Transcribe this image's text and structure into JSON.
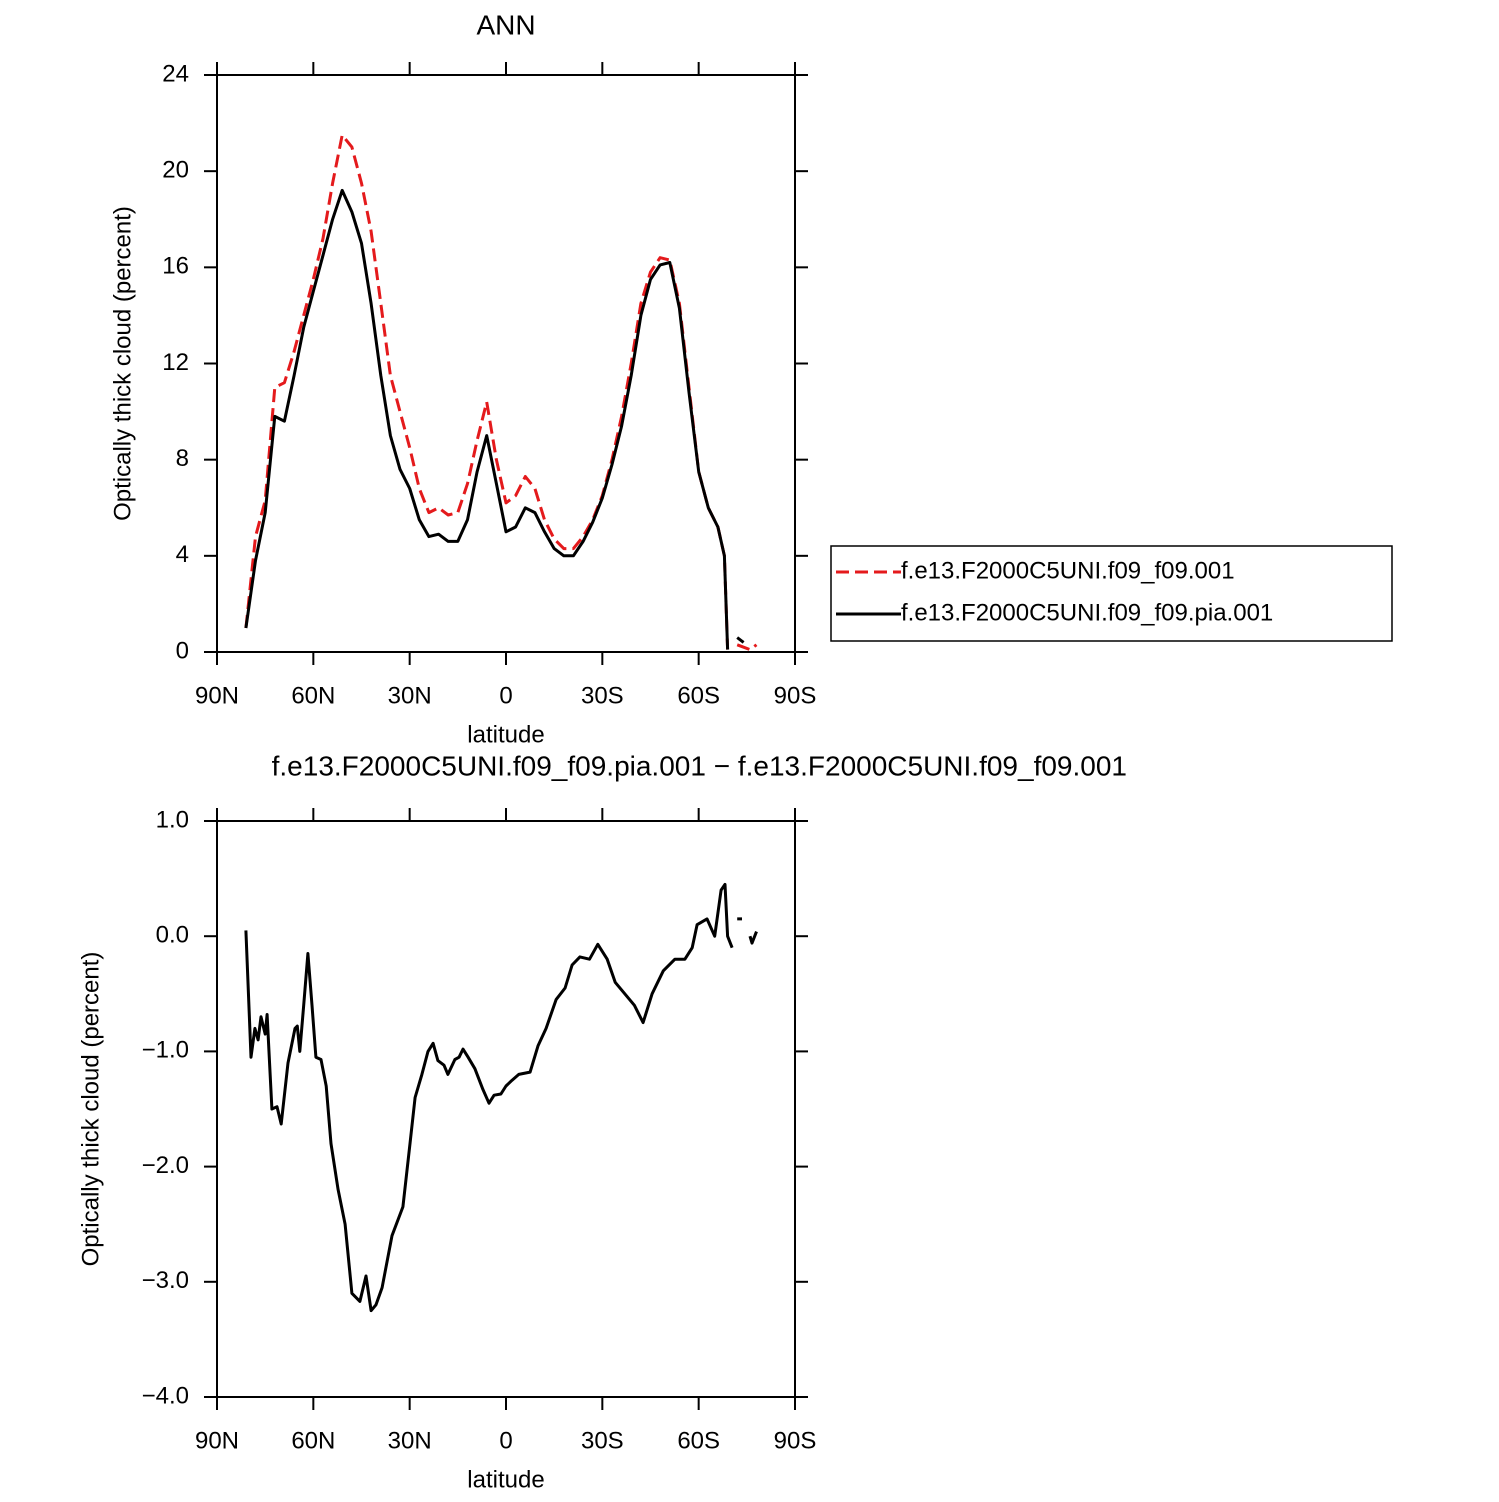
{
  "chart_data": [
    {
      "type": "line",
      "title": "ANN",
      "xlabel": "latitude",
      "ylabel": "Optically thick cloud (percent)",
      "x": [
        81,
        78,
        75,
        72,
        69,
        66,
        63,
        60,
        57,
        54,
        51,
        48,
        45,
        42,
        39,
        36,
        33,
        30,
        27,
        24,
        21,
        18,
        15,
        12,
        9,
        6,
        3,
        0,
        -3,
        -6,
        -9,
        -12,
        -15,
        -18,
        -21,
        -24,
        -27,
        -30,
        -33,
        -36,
        -39,
        -42,
        -45,
        -48,
        -51,
        -54,
        -57,
        -60,
        -63,
        -66,
        -68,
        -69,
        -70,
        -72,
        -74,
        -76,
        -78
      ],
      "series": [
        {
          "name": "f.e13.F2000C5UNI.f09_f09.001",
          "color": "#e41a1c",
          "linestyle": "dashed",
          "values": [
            1,
            4.8,
            6.3,
            11,
            11.2,
            12.5,
            14,
            15.5,
            17.2,
            19.5,
            21.5,
            21,
            19.5,
            17.5,
            14.5,
            11.5,
            10,
            8.5,
            6.8,
            5.8,
            6,
            5.7,
            5.8,
            7,
            8.8,
            10.4,
            8,
            6.2,
            6.5,
            7.3,
            6.8,
            5.5,
            4.7,
            4.3,
            4.3,
            4.8,
            5.5,
            6.5,
            8,
            9.8,
            12,
            14.5,
            15.8,
            16.4,
            16.3,
            14.5,
            11,
            7.5,
            6,
            5.2,
            4,
            0.1,
            null,
            0.3,
            0.2,
            0.1,
            0.3
          ]
        },
        {
          "name": "f.e13.F2000C5UNI.f09_f09.pia.001",
          "color": "#000000",
          "linestyle": "solid",
          "values": [
            1,
            3.8,
            5.8,
            9.8,
            9.6,
            11.5,
            13.5,
            15,
            16.5,
            18,
            19.2,
            18.3,
            17,
            14.5,
            11.5,
            9,
            7.6,
            6.8,
            5.5,
            4.8,
            4.9,
            4.6,
            4.6,
            5.5,
            7.5,
            9,
            7,
            5,
            5.2,
            6,
            5.8,
            5,
            4.3,
            4,
            4,
            4.6,
            5.4,
            6.4,
            7.8,
            9.4,
            11.5,
            14,
            15.5,
            16.1,
            16.2,
            14.3,
            10.8,
            7.5,
            6,
            5.2,
            4,
            0.1,
            null,
            0.6,
            0.4,
            null,
            null
          ]
        }
      ],
      "xlim": [
        90,
        -90
      ],
      "xticks": [
        {
          "value": 90,
          "label": "90N"
        },
        {
          "value": 60,
          "label": "60N"
        },
        {
          "value": 30,
          "label": "30N"
        },
        0,
        {
          "value": -30,
          "label": "30S"
        },
        {
          "value": -60,
          "label": "60S"
        },
        {
          "value": -90,
          "label": "90S"
        }
      ],
      "ylim": [
        0,
        24
      ],
      "yticks": [
        0,
        4,
        8,
        12,
        16,
        20,
        24
      ],
      "legend": "right"
    },
    {
      "type": "line",
      "title": "f.e13.F2000C5UNI.f09_f09.pia.001 − f.e13.F2000C5UNI.f09_f09.001",
      "xlabel": "latitude",
      "ylabel": "Optically thick cloud (percent)",
      "x": [
        81,
        79.4,
        78.2,
        77.2,
        76.3,
        75,
        74.4,
        72.9,
        71.3,
        70,
        67.9,
        65.7,
        65,
        64.2,
        63,
        61.7,
        60.4,
        59.2,
        57.6,
        56,
        54.5,
        52.3,
        50.1,
        48,
        45.5,
        43.6,
        42,
        40.5,
        38.6,
        35.5,
        32.1,
        29.9,
        28.3,
        26.2,
        24.3,
        22.7,
        21.2,
        19.3,
        18.1,
        15.9,
        14.6,
        13.4,
        11.8,
        9.7,
        7.2,
        5.3,
        3.7,
        1.6,
        0,
        -1.9,
        -4,
        -7.5,
        -10,
        -12.5,
        -15.6,
        -18.4,
        -20.6,
        -23,
        -26,
        -28.6,
        -31.5,
        -34,
        -37,
        -40,
        -42.7,
        -45.5,
        -49,
        -52.6,
        -55.7,
        -58,
        -59.5,
        -62.6,
        -65,
        -67,
        -68.2,
        -69,
        -70.4,
        -71.5,
        -72,
        -73.5,
        -75,
        -76,
        -76.6,
        -78
      ],
      "values": [
        0.05,
        -1.05,
        -0.8,
        -0.9,
        -0.7,
        -0.85,
        -0.68,
        -1.5,
        -1.48,
        -1.63,
        -1.1,
        -0.8,
        -0.78,
        -1.0,
        -0.6,
        -0.15,
        -0.6,
        -1.05,
        -1.07,
        -1.3,
        -1.8,
        -2.2,
        -2.5,
        -3.1,
        -3.17,
        -2.95,
        -3.25,
        -3.2,
        -3.05,
        -2.6,
        -2.35,
        -1.8,
        -1.4,
        -1.2,
        -1.0,
        -0.93,
        -1.08,
        -1.12,
        -1.2,
        -1.07,
        -1.05,
        -0.98,
        -1.05,
        -1.15,
        -1.33,
        -1.45,
        -1.38,
        -1.37,
        -1.3,
        -1.25,
        -1.2,
        -1.18,
        -0.95,
        -0.8,
        -0.55,
        -0.45,
        -0.25,
        -0.18,
        -0.2,
        -0.07,
        -0.2,
        -0.4,
        -0.5,
        -0.6,
        -0.75,
        -0.5,
        -0.3,
        -0.2,
        -0.2,
        -0.1,
        0.1,
        0.15,
        0,
        0.4,
        0.45,
        0,
        -0.1,
        null,
        0.15,
        0.15,
        null,
        0,
        -0.06,
        0.04
      ],
      "color": "#000000",
      "linestyle": "solid",
      "xlim": [
        90,
        -90
      ],
      "xticks": [
        {
          "value": 90,
          "label": "90N"
        },
        {
          "value": 60,
          "label": "60N"
        },
        {
          "value": 30,
          "label": "30N"
        },
        0,
        {
          "value": -30,
          "label": "30S"
        },
        {
          "value": -60,
          "label": "60S"
        },
        {
          "value": -90,
          "label": "90S"
        }
      ],
      "ylim": [
        -4,
        1
      ],
      "yticks": [
        {
          "value": -4,
          "label": "−4.0"
        },
        {
          "value": -3,
          "label": "−3.0"
        },
        {
          "value": -2,
          "label": "−2.0"
        },
        {
          "value": -1,
          "label": "−1.0"
        },
        {
          "value": 0,
          "label": "0.0"
        },
        {
          "value": 1,
          "label": "1.0"
        }
      ]
    }
  ]
}
